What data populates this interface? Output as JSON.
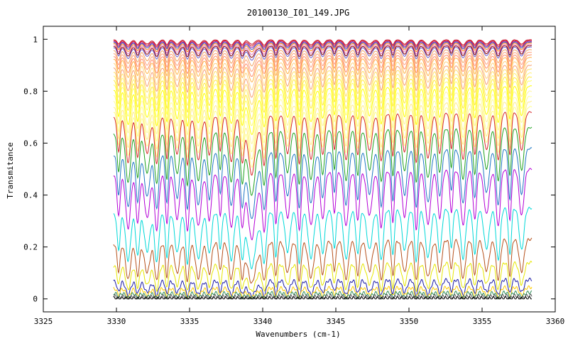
{
  "chart_data": {
    "type": "line",
    "title": "20100130_I01_149.JPG",
    "xlabel": "Wavenumbers (cm-1)",
    "ylabel": "Transmitance",
    "xlim": [
      3325,
      3360
    ],
    "ylim": [
      -0.05,
      1.05
    ],
    "x_ticks": [
      3325,
      3330,
      3335,
      3340,
      3345,
      3350,
      3355,
      3360
    ],
    "y_ticks": [
      0,
      0.2,
      0.4,
      0.6,
      0.8,
      1
    ],
    "x_tick_labels": [
      "3325",
      "3330",
      "3335",
      "3340",
      "3345",
      "3350",
      "3355",
      "3360"
    ],
    "y_tick_labels": [
      "0",
      "0.2",
      "0.4",
      "0.6",
      "0.8",
      "1"
    ],
    "grid": false,
    "legend": "none",
    "x_range_data": [
      3329.8,
      3358.4
    ],
    "absorption_lines": [
      3330.15,
      3330.8,
      3331.45,
      3332.1,
      3332.75,
      3333.45,
      3334.15,
      3334.85,
      3335.6,
      3336.35,
      3337.1,
      3337.85,
      3338.6,
      3339.25,
      3340.1,
      3340.9,
      3341.7,
      3342.5,
      3343.3,
      3344.1,
      3344.9,
      3345.7,
      3346.5,
      3347.3,
      3348.1,
      3348.9,
      3349.7,
      3350.5,
      3351.3,
      3352.1,
      3352.9,
      3353.7,
      3354.5,
      3355.3,
      3356.1,
      3356.9,
      3357.7
    ],
    "series": [
      {
        "baseline": 0.998,
        "color": "#c8102e"
      },
      {
        "baseline": 0.995,
        "color": "#d62728"
      },
      {
        "baseline": 0.992,
        "color": "#9c27b0"
      },
      {
        "baseline": 0.989,
        "color": "#3f51b5"
      },
      {
        "baseline": 0.985,
        "color": "#ff7f0e"
      },
      {
        "baseline": 0.98,
        "color": "#e377c2"
      },
      {
        "baseline": 0.975,
        "color": "#8b0000"
      },
      {
        "baseline": 0.97,
        "color": "#6a5acd"
      },
      {
        "baseline": 0.96,
        "color": "#f4a460"
      },
      {
        "baseline": 0.95,
        "color": "#ffa07a"
      },
      {
        "baseline": 0.94,
        "color": "#ff8c69"
      },
      {
        "baseline": 0.93,
        "color": "#ffb347"
      },
      {
        "baseline": 0.915,
        "color": "#ffd27f"
      },
      {
        "baseline": 0.9,
        "color": "#f7a072"
      },
      {
        "baseline": 0.885,
        "color": "#ffe066"
      },
      {
        "baseline": 0.87,
        "color": "#fff176"
      },
      {
        "baseline": 0.855,
        "color": "#ffeb3b"
      },
      {
        "baseline": 0.84,
        "color": "#ffff66"
      },
      {
        "baseline": 0.82,
        "color": "#ffff00"
      },
      {
        "baseline": 0.8,
        "color": "#fff59d"
      },
      {
        "baseline": 0.78,
        "color": "#ffff99"
      },
      {
        "baseline": 0.76,
        "color": "#ffec8b"
      },
      {
        "baseline": 0.74,
        "color": "#ffff88"
      },
      {
        "baseline": 0.72,
        "color": "#d62728"
      },
      {
        "baseline": 0.66,
        "color": "#1fa21f"
      },
      {
        "baseline": 0.58,
        "color": "#1f77c4"
      },
      {
        "baseline": 0.5,
        "color": "#b400d6"
      },
      {
        "baseline": 0.35,
        "color": "#00d8d8"
      },
      {
        "baseline": 0.23,
        "color": "#b5501b"
      },
      {
        "baseline": 0.14,
        "color": "#e6e600"
      },
      {
        "baseline": 0.075,
        "color": "#1a1aa6"
      },
      {
        "baseline": 0.045,
        "color": "#ffcc00"
      },
      {
        "baseline": 0.025,
        "color": "#2e8b57"
      },
      {
        "baseline": 0.012,
        "color": "#555555"
      },
      {
        "baseline": 0.003,
        "color": "#000000"
      }
    ]
  }
}
